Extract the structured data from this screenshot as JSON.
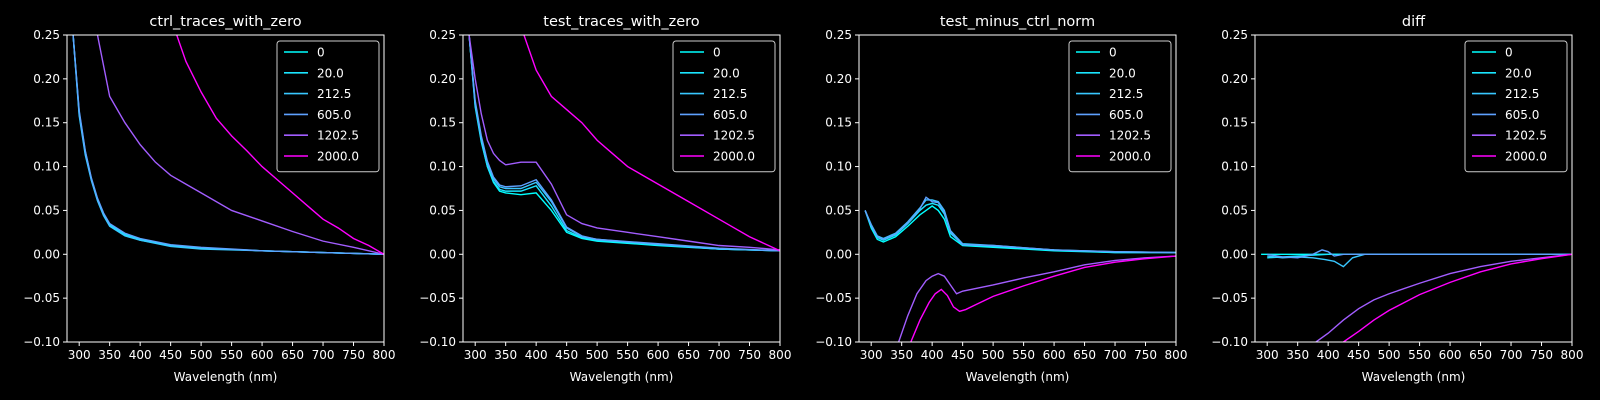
{
  "style": {
    "background": "#000000",
    "foreground": "#ffffff",
    "series_colors": [
      "#00ffff",
      "#1ae5ff",
      "#38c7ff",
      "#5ea1ff",
      "#a25dff",
      "#ff00ff"
    ]
  },
  "chart_data": [
    {
      "type": "line",
      "title": "ctrl_traces_with_zero",
      "xlabel": "Wavelength (nm)",
      "ylabel": "",
      "xlim": [
        280,
        800
      ],
      "ylim": [
        -0.1,
        0.25
      ],
      "xticks": [
        "300",
        "350",
        "400",
        "450",
        "500",
        "550",
        "600",
        "650",
        "700",
        "750",
        "800"
      ],
      "yticks": [
        "−0.10",
        "−0.05",
        "0.00",
        "0.05",
        "0.10",
        "0.15",
        "0.20",
        "0.25"
      ],
      "legend_position": "top-right",
      "series": [
        {
          "name": "0",
          "x": [
            290,
            300,
            310,
            320,
            330,
            340,
            350,
            375,
            400,
            450,
            500,
            600,
            700,
            800
          ],
          "y": [
            0.25,
            0.16,
            0.115,
            0.085,
            0.062,
            0.045,
            0.033,
            0.022,
            0.016,
            0.01,
            0.007,
            0.004,
            0.002,
            0.0
          ]
        },
        {
          "name": "20.0",
          "x": [
            290,
            300,
            310,
            320,
            330,
            340,
            350,
            375,
            400,
            450,
            500,
            600,
            700,
            800
          ],
          "y": [
            0.25,
            0.162,
            0.117,
            0.086,
            0.063,
            0.046,
            0.034,
            0.023,
            0.017,
            0.01,
            0.007,
            0.004,
            0.002,
            0.0
          ]
        },
        {
          "name": "212.5",
          "x": [
            290,
            300,
            310,
            320,
            330,
            340,
            350,
            375,
            400,
            450,
            500,
            600,
            700,
            800
          ],
          "y": [
            0.25,
            0.158,
            0.113,
            0.084,
            0.061,
            0.044,
            0.032,
            0.021,
            0.016,
            0.009,
            0.006,
            0.004,
            0.002,
            0.0
          ]
        },
        {
          "name": "605.0",
          "x": [
            290,
            300,
            310,
            320,
            330,
            340,
            350,
            375,
            400,
            450,
            500,
            600,
            700,
            800
          ],
          "y": [
            0.25,
            0.164,
            0.118,
            0.087,
            0.064,
            0.047,
            0.035,
            0.024,
            0.018,
            0.011,
            0.008,
            0.004,
            0.002,
            0.0
          ]
        },
        {
          "name": "1202.5",
          "x": [
            330,
            350,
            375,
            400,
            425,
            450,
            475,
            500,
            550,
            600,
            650,
            700,
            750,
            800
          ],
          "y": [
            0.25,
            0.18,
            0.15,
            0.125,
            0.105,
            0.09,
            0.08,
            0.07,
            0.05,
            0.038,
            0.026,
            0.015,
            0.008,
            0.0
          ]
        },
        {
          "name": "2000.0",
          "x": [
            460,
            475,
            500,
            525,
            550,
            575,
            600,
            625,
            650,
            675,
            700,
            725,
            750,
            775,
            800
          ],
          "y": [
            0.25,
            0.22,
            0.185,
            0.155,
            0.135,
            0.118,
            0.1,
            0.085,
            0.07,
            0.055,
            0.04,
            0.03,
            0.018,
            0.01,
            0.0
          ]
        }
      ]
    },
    {
      "type": "line",
      "title": "test_traces_with_zero",
      "xlabel": "Wavelength (nm)",
      "ylabel": "",
      "xlim": [
        280,
        800
      ],
      "ylim": [
        -0.1,
        0.25
      ],
      "xticks": [
        "300",
        "350",
        "400",
        "450",
        "500",
        "550",
        "600",
        "650",
        "700",
        "750",
        "800"
      ],
      "yticks": [
        "−0.10",
        "−0.05",
        "0.00",
        "0.05",
        "0.10",
        "0.15",
        "0.20",
        "0.25"
      ],
      "legend_position": "top-right",
      "series": [
        {
          "name": "0",
          "x": [
            290,
            300,
            310,
            320,
            330,
            340,
            350,
            375,
            400,
            425,
            450,
            475,
            500,
            600,
            700,
            800
          ],
          "y": [
            0.25,
            0.17,
            0.13,
            0.1,
            0.082,
            0.072,
            0.07,
            0.068,
            0.07,
            0.05,
            0.025,
            0.018,
            0.015,
            0.01,
            0.006,
            0.004
          ]
        },
        {
          "name": "20.0",
          "x": [
            290,
            300,
            310,
            320,
            330,
            340,
            350,
            375,
            400,
            425,
            450,
            475,
            500,
            600,
            700,
            800
          ],
          "y": [
            0.25,
            0.168,
            0.128,
            0.1,
            0.083,
            0.074,
            0.072,
            0.072,
            0.078,
            0.055,
            0.027,
            0.019,
            0.016,
            0.011,
            0.006,
            0.004
          ]
        },
        {
          "name": "212.5",
          "x": [
            290,
            300,
            310,
            320,
            330,
            340,
            350,
            375,
            400,
            425,
            450,
            475,
            500,
            600,
            700,
            800
          ],
          "y": [
            0.25,
            0.172,
            0.132,
            0.104,
            0.086,
            0.077,
            0.075,
            0.075,
            0.082,
            0.06,
            0.03,
            0.02,
            0.017,
            0.011,
            0.006,
            0.004
          ]
        },
        {
          "name": "605.0",
          "x": [
            290,
            300,
            310,
            320,
            330,
            340,
            350,
            375,
            400,
            425,
            450,
            475,
            500,
            600,
            700,
            800
          ],
          "y": [
            0.25,
            0.175,
            0.135,
            0.106,
            0.088,
            0.079,
            0.077,
            0.078,
            0.085,
            0.062,
            0.031,
            0.021,
            0.017,
            0.012,
            0.007,
            0.004
          ]
        },
        {
          "name": "1202.5",
          "x": [
            290,
            300,
            310,
            320,
            330,
            340,
            350,
            375,
            400,
            425,
            450,
            475,
            500,
            550,
            600,
            650,
            700,
            750,
            800
          ],
          "y": [
            0.25,
            0.2,
            0.16,
            0.13,
            0.115,
            0.107,
            0.102,
            0.105,
            0.105,
            0.08,
            0.045,
            0.035,
            0.03,
            0.025,
            0.02,
            0.015,
            0.01,
            0.008,
            0.005
          ]
        },
        {
          "name": "2000.0",
          "x": [
            380,
            400,
            425,
            450,
            475,
            500,
            525,
            550,
            575,
            600,
            650,
            700,
            750,
            800
          ],
          "y": [
            0.25,
            0.21,
            0.18,
            0.165,
            0.15,
            0.13,
            0.115,
            0.1,
            0.09,
            0.08,
            0.06,
            0.04,
            0.02,
            0.004
          ]
        }
      ]
    },
    {
      "type": "line",
      "title": "test_minus_ctrl_norm",
      "xlabel": "Wavelength (nm)",
      "ylabel": "",
      "xlim": [
        280,
        800
      ],
      "ylim": [
        -0.1,
        0.25
      ],
      "xticks": [
        "300",
        "350",
        "400",
        "450",
        "500",
        "550",
        "600",
        "650",
        "700",
        "750",
        "800"
      ],
      "yticks": [
        "−0.10",
        "−0.05",
        "0.00",
        "0.05",
        "0.10",
        "0.15",
        "0.20",
        "0.25"
      ],
      "legend_position": "top-right",
      "series": [
        {
          "name": "0",
          "x": [
            290,
            300,
            310,
            320,
            340,
            360,
            380,
            390,
            400,
            410,
            420,
            430,
            450,
            500,
            600,
            700,
            800
          ],
          "y": [
            0.05,
            0.03,
            0.017,
            0.014,
            0.02,
            0.032,
            0.045,
            0.05,
            0.055,
            0.05,
            0.04,
            0.02,
            0.01,
            0.008,
            0.004,
            0.002,
            0.002
          ]
        },
        {
          "name": "20.0",
          "x": [
            290,
            300,
            310,
            320,
            340,
            360,
            380,
            390,
            400,
            410,
            420,
            430,
            450,
            500,
            600,
            700,
            800
          ],
          "y": [
            0.05,
            0.032,
            0.019,
            0.016,
            0.022,
            0.035,
            0.05,
            0.056,
            0.058,
            0.056,
            0.046,
            0.024,
            0.011,
            0.009,
            0.005,
            0.002,
            0.002
          ]
        },
        {
          "name": "212.5",
          "x": [
            290,
            300,
            310,
            320,
            340,
            360,
            380,
            390,
            400,
            410,
            420,
            430,
            450,
            500,
            600,
            700,
            800
          ],
          "y": [
            0.05,
            0.034,
            0.021,
            0.018,
            0.024,
            0.037,
            0.053,
            0.062,
            0.062,
            0.06,
            0.05,
            0.027,
            0.012,
            0.01,
            0.005,
            0.003,
            0.002
          ]
        },
        {
          "name": "605.0",
          "x": [
            290,
            300,
            310,
            320,
            340,
            360,
            380,
            390,
            400,
            410,
            420,
            430,
            450,
            500,
            600,
            700,
            800
          ],
          "y": [
            0.05,
            0.033,
            0.02,
            0.017,
            0.023,
            0.036,
            0.052,
            0.065,
            0.06,
            0.059,
            0.048,
            0.026,
            0.011,
            0.01,
            0.005,
            0.003,
            0.002
          ]
        },
        {
          "name": "1202.5",
          "x": [
            345,
            360,
            375,
            390,
            400,
            410,
            420,
            430,
            440,
            450,
            500,
            550,
            600,
            650,
            700,
            750,
            800
          ],
          "y": [
            -0.1,
            -0.07,
            -0.045,
            -0.03,
            -0.025,
            -0.022,
            -0.025,
            -0.035,
            -0.045,
            -0.042,
            -0.035,
            -0.027,
            -0.02,
            -0.012,
            -0.007,
            -0.004,
            -0.002
          ]
        },
        {
          "name": "2000.0",
          "x": [
            365,
            380,
            395,
            405,
            415,
            425,
            435,
            445,
            455,
            470,
            500,
            550,
            600,
            650,
            700,
            750,
            800
          ],
          "y": [
            -0.1,
            -0.075,
            -0.055,
            -0.045,
            -0.04,
            -0.047,
            -0.06,
            -0.065,
            -0.063,
            -0.058,
            -0.048,
            -0.036,
            -0.025,
            -0.015,
            -0.009,
            -0.005,
            -0.002
          ]
        }
      ]
    },
    {
      "type": "line",
      "title": "diff",
      "xlabel": "Wavelength (nm)",
      "ylabel": "",
      "xlim": [
        280,
        800
      ],
      "ylim": [
        -0.1,
        0.25
      ],
      "xticks": [
        "300",
        "350",
        "400",
        "450",
        "500",
        "550",
        "600",
        "650",
        "700",
        "750",
        "800"
      ],
      "yticks": [
        "−0.10",
        "−0.05",
        "0.00",
        "0.05",
        "0.10",
        "0.15",
        "0.20",
        "0.25"
      ],
      "legend_position": "top-right",
      "series": [
        {
          "name": "0",
          "x": [
            290,
            800
          ],
          "y": [
            0.0,
            0.0
          ]
        },
        {
          "name": "20.0",
          "x": [
            300,
            325,
            350,
            375,
            400,
            425,
            450,
            500,
            600,
            700,
            800
          ],
          "y": [
            -0.004,
            -0.003,
            -0.002,
            -0.001,
            0.0,
            0.0,
            0.0,
            0.0,
            0.0,
            0.0,
            0.0
          ]
        },
        {
          "name": "212.5",
          "x": [
            300,
            325,
            350,
            375,
            395,
            410,
            425,
            440,
            460,
            500,
            600,
            800
          ],
          "y": [
            -0.002,
            -0.004,
            -0.003,
            -0.004,
            -0.006,
            -0.008,
            -0.014,
            -0.004,
            0.0,
            0.0,
            0.0,
            0.0
          ]
        },
        {
          "name": "605.0",
          "x": [
            300,
            325,
            350,
            375,
            390,
            400,
            410,
            425,
            450,
            500,
            600,
            800
          ],
          "y": [
            0.0,
            -0.003,
            -0.004,
            0.0,
            0.005,
            0.003,
            -0.002,
            0.0,
            0.0,
            0.0,
            0.0,
            0.0
          ]
        },
        {
          "name": "1202.5",
          "x": [
            380,
            400,
            425,
            450,
            475,
            500,
            550,
            600,
            650,
            700,
            750,
            800
          ],
          "y": [
            -0.1,
            -0.09,
            -0.075,
            -0.062,
            -0.052,
            -0.045,
            -0.033,
            -0.022,
            -0.014,
            -0.008,
            -0.004,
            0.0
          ]
        },
        {
          "name": "2000.0",
          "x": [
            425,
            450,
            475,
            500,
            525,
            550,
            600,
            650,
            700,
            750,
            800
          ],
          "y": [
            -0.1,
            -0.088,
            -0.075,
            -0.064,
            -0.055,
            -0.046,
            -0.032,
            -0.02,
            -0.011,
            -0.005,
            0.0
          ]
        }
      ]
    }
  ]
}
